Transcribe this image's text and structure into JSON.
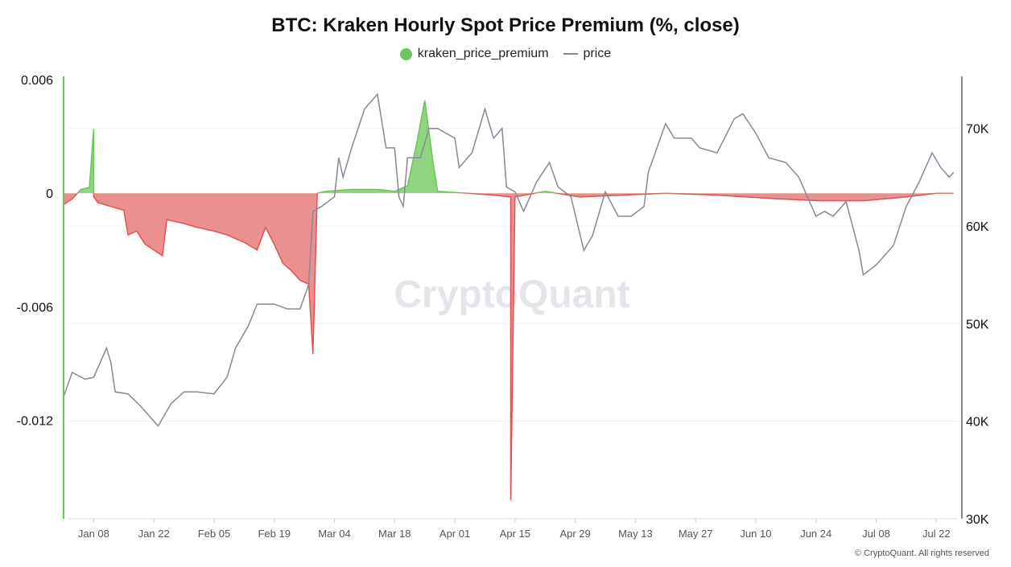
{
  "chart_data": {
    "type": "line",
    "title": "BTC: Kraken Hourly Spot Price Premium (%, close)",
    "watermark": "CryptoQuant",
    "footer": "© CryptoQuant. All rights reserved",
    "grid": true,
    "legend_placement": "top-center",
    "x_ticks": [
      "Jan 08",
      "Jan 22",
      "Feb 05",
      "Feb 19",
      "Mar 04",
      "Mar 18",
      "Apr 01",
      "Apr 15",
      "Apr 29",
      "May 13",
      "May 27",
      "Jun 10",
      "Jun 24",
      "Jul 08",
      "Jul 22"
    ],
    "x_range": [
      "Jan 01",
      "Jul 27"
    ],
    "y_left": {
      "ticks": [
        "0.006",
        "0",
        "-0.006",
        "-0.012"
      ],
      "range": [
        -0.0172,
        0.006
      ]
    },
    "y_right": {
      "ticks": [
        "70K",
        "60K",
        "50K",
        "40K",
        "30K"
      ],
      "range": [
        30000,
        75000
      ]
    },
    "colors": {
      "positive": "#6cc55a",
      "negative": "#e05252",
      "positive_fill": "#8fd47f",
      "negative_fill": "#eb9090",
      "price": "#8a8796"
    },
    "series": [
      {
        "name": "kraken_price_premium",
        "axis": "left",
        "points": [
          [
            "Jan 01",
            -0.0006
          ],
          [
            "Jan 03",
            -0.0003
          ],
          [
            "Jan 05",
            0.0002
          ],
          [
            "Jan 07",
            0.0003
          ],
          [
            "Jan 08",
            0.0034
          ],
          [
            "Jan 08",
            -0.0002
          ],
          [
            "Jan 09",
            -0.0005
          ],
          [
            "Jan 12",
            -0.0007
          ],
          [
            "Jan 15",
            -0.0009
          ],
          [
            "Jan 16",
            -0.0022
          ],
          [
            "Jan 18",
            -0.002
          ],
          [
            "Jan 20",
            -0.0027
          ],
          [
            "Jan 22",
            -0.003
          ],
          [
            "Jan 24",
            -0.0033
          ],
          [
            "Jan 25",
            -0.0014
          ],
          [
            "Jan 29",
            -0.0016
          ],
          [
            "Feb 01",
            -0.0018
          ],
          [
            "Feb 05",
            -0.002
          ],
          [
            "Feb 08",
            -0.0022
          ],
          [
            "Feb 12",
            -0.0026
          ],
          [
            "Feb 15",
            -0.003
          ],
          [
            "Feb 17",
            -0.0018
          ],
          [
            "Feb 19",
            -0.0027
          ],
          [
            "Feb 21",
            -0.0037
          ],
          [
            "Feb 23",
            -0.0041
          ],
          [
            "Feb 25",
            -0.0046
          ],
          [
            "Feb 27",
            -0.0048
          ],
          [
            "Feb 28",
            -0.0085
          ],
          [
            "Feb 29",
            0.0
          ],
          [
            "Mar 02",
            0.0001
          ],
          [
            "Mar 08",
            0.0002
          ],
          [
            "Mar 14",
            0.0002
          ],
          [
            "Mar 18",
            0.0001
          ],
          [
            "Mar 21",
            0.0004
          ],
          [
            "Mar 23",
            0.0025
          ],
          [
            "Mar 25",
            0.0049
          ],
          [
            "Mar 27",
            0.0015
          ],
          [
            "Mar 28",
            0.0001
          ],
          [
            "Apr 04",
            0.0
          ],
          [
            "Apr 10",
            -0.0001
          ],
          [
            "Apr 14",
            -0.0002
          ],
          [
            "Apr 14",
            -0.0162
          ],
          [
            "Apr 15",
            -0.0002
          ],
          [
            "Apr 22",
            0.0001
          ],
          [
            "Apr 30",
            -0.0002
          ],
          [
            "May 10",
            -0.0001
          ],
          [
            "May 20",
            0.0
          ],
          [
            "Jun 01",
            -0.0001
          ],
          [
            "Jun 15",
            -0.0003
          ],
          [
            "Jun 25",
            -0.0004
          ],
          [
            "Jul 05",
            -0.0004
          ],
          [
            "Jul 15",
            -0.0002
          ],
          [
            "Jul 22",
            0.0
          ],
          [
            "Jul 26",
            0.0
          ]
        ]
      },
      {
        "name": "price",
        "axis": "right",
        "points": [
          [
            "Jan 01",
            42500
          ],
          [
            "Jan 03",
            45000
          ],
          [
            "Jan 06",
            44300
          ],
          [
            "Jan 08",
            44500
          ],
          [
            "Jan 10",
            46500
          ],
          [
            "Jan 11",
            47500
          ],
          [
            "Jan 12",
            46000
          ],
          [
            "Jan 13",
            43000
          ],
          [
            "Jan 16",
            42800
          ],
          [
            "Jan 19",
            41500
          ],
          [
            "Jan 22",
            40000
          ],
          [
            "Jan 23",
            39500
          ],
          [
            "Jan 26",
            41800
          ],
          [
            "Jan 29",
            43000
          ],
          [
            "Feb 01",
            43000
          ],
          [
            "Feb 05",
            42800
          ],
          [
            "Feb 08",
            44500
          ],
          [
            "Feb 10",
            47500
          ],
          [
            "Feb 13",
            49800
          ],
          [
            "Feb 15",
            52000
          ],
          [
            "Feb 19",
            52000
          ],
          [
            "Feb 22",
            51500
          ],
          [
            "Feb 25",
            51500
          ],
          [
            "Feb 27",
            54000
          ],
          [
            "Feb 28",
            61500
          ],
          [
            "Mar 01",
            62000
          ],
          [
            "Mar 04",
            63000
          ],
          [
            "Mar 05",
            67000
          ],
          [
            "Mar 06",
            65000
          ],
          [
            "Mar 08",
            68000
          ],
          [
            "Mar 11",
            72000
          ],
          [
            "Mar 14",
            73500
          ],
          [
            "Mar 16",
            68000
          ],
          [
            "Mar 18",
            68000
          ],
          [
            "Mar 19",
            63000
          ],
          [
            "Mar 20",
            62000
          ],
          [
            "Mar 21",
            67000
          ],
          [
            "Mar 24",
            67000
          ],
          [
            "Mar 26",
            70000
          ],
          [
            "Mar 28",
            70000
          ],
          [
            "Apr 01",
            69000
          ],
          [
            "Apr 02",
            66000
          ],
          [
            "Apr 05",
            67500
          ],
          [
            "Apr 08",
            72000
          ],
          [
            "Apr 10",
            69000
          ],
          [
            "Apr 12",
            70000
          ],
          [
            "Apr 13",
            64000
          ],
          [
            "Apr 15",
            63500
          ],
          [
            "Apr 17",
            61500
          ],
          [
            "Apr 20",
            64500
          ],
          [
            "Apr 23",
            66500
          ],
          [
            "Apr 25",
            64000
          ],
          [
            "Apr 28",
            63000
          ],
          [
            "May 01",
            57500
          ],
          [
            "May 03",
            59000
          ],
          [
            "May 06",
            63500
          ],
          [
            "May 09",
            61000
          ],
          [
            "May 12",
            61000
          ],
          [
            "May 15",
            62000
          ],
          [
            "May 16",
            65500
          ],
          [
            "May 20",
            70500
          ],
          [
            "May 22",
            69000
          ],
          [
            "May 26",
            69000
          ],
          [
            "May 28",
            68000
          ],
          [
            "Jun 01",
            67500
          ],
          [
            "Jun 05",
            71000
          ],
          [
            "Jun 07",
            71500
          ],
          [
            "Jun 10",
            69500
          ],
          [
            "Jun 13",
            67000
          ],
          [
            "Jun 17",
            66500
          ],
          [
            "Jun 20",
            65000
          ],
          [
            "Jun 24",
            61000
          ],
          [
            "Jun 26",
            61500
          ],
          [
            "Jun 28",
            61000
          ],
          [
            "Jul 01",
            62500
          ],
          [
            "Jul 04",
            57500
          ],
          [
            "Jul 05",
            55000
          ],
          [
            "Jul 08",
            56000
          ],
          [
            "Jul 12",
            58000
          ],
          [
            "Jul 15",
            62000
          ],
          [
            "Jul 18",
            64500
          ],
          [
            "Jul 21",
            67500
          ],
          [
            "Jul 23",
            66000
          ],
          [
            "Jul 25",
            65000
          ],
          [
            "Jul 26",
            65500
          ]
        ]
      }
    ]
  }
}
